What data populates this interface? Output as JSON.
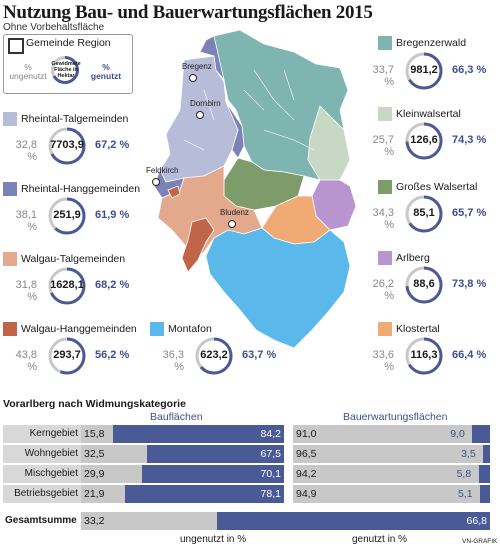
{
  "title": "Nutzung Bau- und Bauerwartungsflächen 2015",
  "subtitle": "Ohne Vorbehaltsfläche",
  "legend": {
    "box_label": "Gemeinde Region",
    "left": "% ungenutzt",
    "right": "% genutzt",
    "ring_label": "Gewidmete Fläche in Hektar"
  },
  "colors": {
    "ungenutzt": "#c8c8c8",
    "genutzt": "#4a5a96",
    "text_genutzt": "#3d4f8a"
  },
  "regions": [
    {
      "name": "Rheintal-Talgemeinden",
      "color": "#b7bcd9",
      "ungenutzt": "32,8 %",
      "value": "7703,9",
      "genutzt": "67,2 %",
      "genutzt_pct": 67.2
    },
    {
      "name": "Rheintal-Hanggemeinden",
      "color": "#7a82b6",
      "ungenutzt": "38,1 %",
      "value": "251,9",
      "genutzt": "61,9 %",
      "genutzt_pct": 61.9
    },
    {
      "name": "Walgau-Talgemeinden",
      "color": "#e3a98d",
      "ungenutzt": "31,8 %",
      "value": "1628,1",
      "genutzt": "68,2 %",
      "genutzt_pct": 68.2
    },
    {
      "name": "Walgau-Hanggemeinden",
      "color": "#c0654a",
      "ungenutzt": "43,8 %",
      "value": "293,7",
      "genutzt": "56,2 %",
      "genutzt_pct": 56.2
    },
    {
      "name": "Montafon",
      "color": "#5bb8ea",
      "ungenutzt": "36,3 %",
      "value": "623,2",
      "genutzt": "63,7 %",
      "genutzt_pct": 63.7
    },
    {
      "name": "Bregenzerwald",
      "color": "#7fb5b0",
      "ungenutzt": "33,7 %",
      "value": "981,2",
      "genutzt": "66,3 %",
      "genutzt_pct": 66.3
    },
    {
      "name": "Kleinwalsertal",
      "color": "#c7d9c4",
      "ungenutzt": "25,7 %",
      "value": "126,6",
      "genutzt": "74,3 %",
      "genutzt_pct": 74.3
    },
    {
      "name": "Großes Walsertal",
      "color": "#7e9c6a",
      "ungenutzt": "34,3 %",
      "value": "85,1",
      "genutzt": "65,7 %",
      "genutzt_pct": 65.7
    },
    {
      "name": "Arlberg",
      "color": "#b995d0",
      "ungenutzt": "26,2 %",
      "value": "88,6",
      "genutzt": "73,8 %",
      "genutzt_pct": 73.8
    },
    {
      "name": "Klostertal",
      "color": "#f0aa74",
      "ungenutzt": "33,6 %",
      "value": "116,3",
      "genutzt": "66,4 %",
      "genutzt_pct": 66.4
    }
  ],
  "towns": [
    "Bregenz",
    "Dornbirn",
    "Feldkirch",
    "Bludenz"
  ],
  "chart_data": {
    "type": "bar",
    "title": "Vorarlberg nach Widmungskategorie",
    "groups": [
      "Bauflächen",
      "Bauerwartungsflächen"
    ],
    "categories": [
      "Kerngebiet",
      "Wohngebiet",
      "Mischgebiet",
      "Betriebsgebiet",
      "Gesamtsumme"
    ],
    "series": [
      {
        "name": "ungenutzt in %",
        "bauflaechen": [
          15.8,
          32.5,
          29.9,
          21.9,
          33.2
        ],
        "bauerwartungsflaechen": [
          91.0,
          96.5,
          94.2,
          94.9
        ]
      },
      {
        "name": "genutzt in %",
        "bauflaechen": [
          84.2,
          67.5,
          70.1,
          78.1,
          66.8
        ],
        "bauerwartungsflaechen": [
          9.0,
          3.5,
          5.8,
          5.1
        ]
      }
    ],
    "labels": {
      "bauflaechen_u": [
        "15,8",
        "32,5",
        "29,9",
        "21,9",
        "33,2"
      ],
      "bauflaechen_g": [
        "84,2",
        "67,5",
        "70,1",
        "78,1",
        "66,8"
      ],
      "bauerw_u": [
        "91,0",
        "96,5",
        "94,2",
        "94,9"
      ],
      "bauerw_g": [
        "9,0",
        "3,5",
        "5,8",
        "5,1"
      ]
    },
    "legend_ungenutzt": "ungenutzt in %",
    "legend_genutzt": "genutzt in %"
  },
  "credit": "VN-GRAFIK"
}
